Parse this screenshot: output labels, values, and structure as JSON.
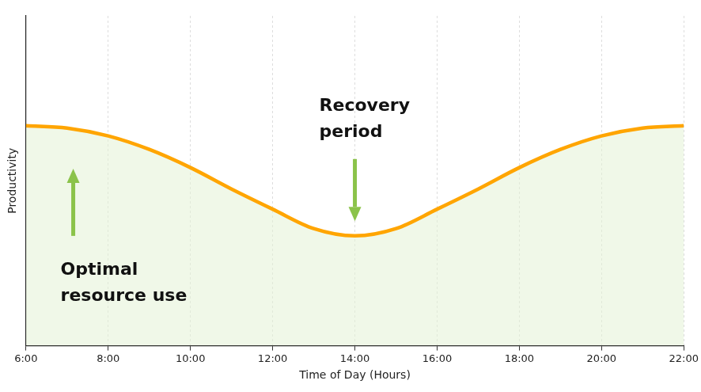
{
  "chart_data": {
    "type": "area",
    "x_label": "Time of Day (Hours)",
    "y_label": "Productivity",
    "x": [
      6,
      7,
      8,
      9,
      10,
      11,
      12,
      13,
      14,
      15,
      16,
      17,
      18,
      19,
      20,
      21,
      22
    ],
    "values": [
      66.7,
      66.0,
      63.6,
      59.5,
      54.0,
      47.5,
      41.4,
      35.5,
      33.3,
      35.5,
      41.4,
      47.5,
      54.0,
      59.5,
      63.6,
      66.0,
      66.7
    ],
    "color": "#ffa500",
    "marker": "none",
    "xlim": [
      6,
      22
    ],
    "xticks": [
      {
        "value": 6,
        "label": "6:00"
      },
      {
        "value": 8,
        "label": "8:00"
      },
      {
        "value": 10,
        "label": "10:00"
      },
      {
        "value": 12,
        "label": "12:00"
      },
      {
        "value": 14,
        "label": "14:00"
      },
      {
        "value": 16,
        "label": "16:00"
      },
      {
        "value": 18,
        "label": "18:00"
      },
      {
        "value": 20,
        "label": "20:00"
      },
      {
        "value": 22,
        "label": "22:00"
      }
    ],
    "ylim": [
      0,
      100
    ],
    "yticks": [],
    "tick_labels": "x",
    "grid": "x",
    "annotations": [
      {
        "text": [
          "Recovery",
          "period"
        ],
        "x": 14,
        "arrow": [
          56.6,
          37.8
        ]
      },
      {
        "text": [
          "Optimal",
          "resource use"
        ],
        "x": 7.15,
        "arrow": [
          33.3,
          53.7
        ]
      }
    ]
  }
}
